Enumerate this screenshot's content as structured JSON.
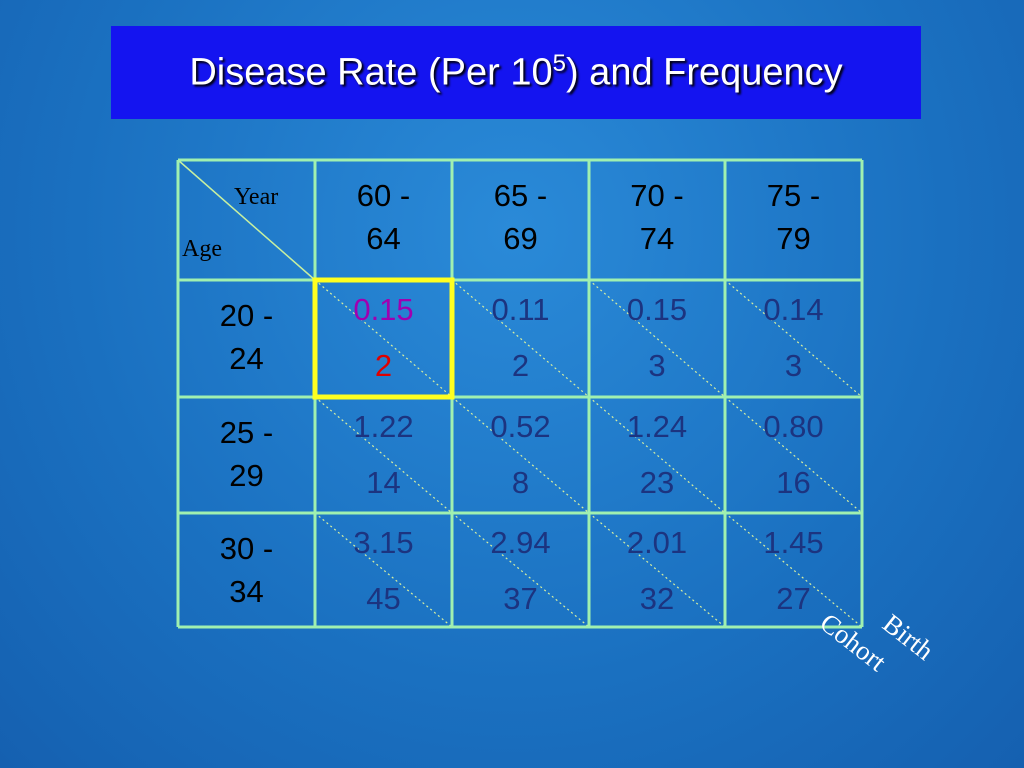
{
  "title": {
    "before": "Disease Rate (Per 10",
    "sup": "5",
    "after": ") and Frequency"
  },
  "table": {
    "corner": {
      "column_label": "Year",
      "row_label": "Age"
    },
    "columns": [
      "60 - 64",
      "65 - 69",
      "70 - 74",
      "75 - 79"
    ],
    "rows": [
      {
        "label": "20 - 24",
        "cells": [
          {
            "rate": "0.15",
            "count": "2"
          },
          {
            "rate": "0.11",
            "count": "2"
          },
          {
            "rate": "0.15",
            "count": "3"
          },
          {
            "rate": "0.14",
            "count": "3"
          }
        ]
      },
      {
        "label": "25 - 29",
        "cells": [
          {
            "rate": "1.22",
            "count": "14"
          },
          {
            "rate": "0.52",
            "count": "8"
          },
          {
            "rate": "1.24",
            "count": "23"
          },
          {
            "rate": "0.80",
            "count": "16"
          }
        ]
      },
      {
        "label": "30 - 34",
        "cells": [
          {
            "rate": "3.15",
            "count": "45"
          },
          {
            "rate": "2.94",
            "count": "37"
          },
          {
            "rate": "2.01",
            "count": "32"
          },
          {
            "rate": "1.45",
            "count": "27"
          }
        ]
      }
    ]
  },
  "annotation": {
    "line1": "Birth",
    "line2": "Cohort"
  }
}
